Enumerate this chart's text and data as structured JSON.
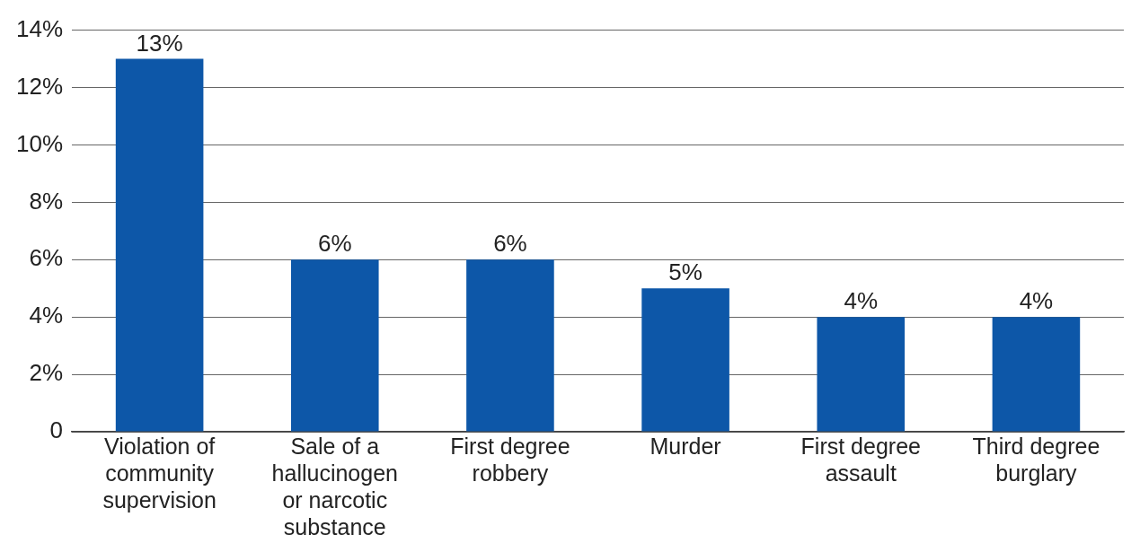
{
  "chart_data": {
    "type": "bar",
    "categories": [
      "Violation of community supervision",
      "Sale of a hallucinogen or narcotic substance",
      "First degree robbery",
      "Murder",
      "First degree assault",
      "Third degree burglary"
    ],
    "values": [
      13,
      6,
      6,
      5,
      4,
      4
    ],
    "value_labels": [
      "13%",
      "6%",
      "6%",
      "5%",
      "4%",
      "4%"
    ],
    "color": "#0d57a8",
    "ylim": [
      0,
      14
    ],
    "yticks": [
      {
        "value": 0,
        "label": "0"
      },
      {
        "value": 2,
        "label": "2%"
      },
      {
        "value": 4,
        "label": "4%"
      },
      {
        "value": 6,
        "label": "6%"
      },
      {
        "value": 8,
        "label": "8%"
      },
      {
        "value": 10,
        "label": "10%"
      },
      {
        "value": 12,
        "label": "12%"
      },
      {
        "value": 14,
        "label": "14%"
      }
    ],
    "grid": "y",
    "legend": false
  }
}
